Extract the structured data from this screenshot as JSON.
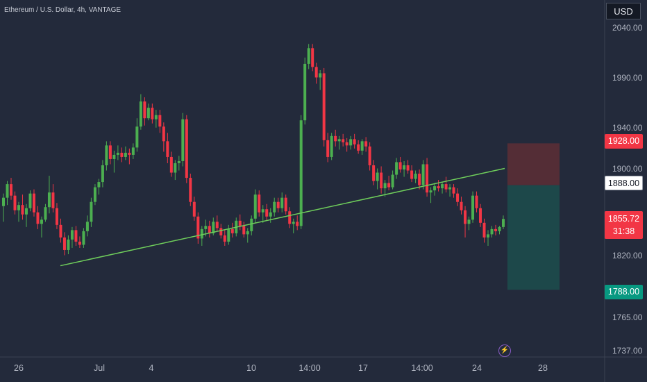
{
  "header": {
    "title": "Ethereum / U.S. Dollar, 4h, VANTAGE",
    "currency_button": "USD"
  },
  "colors": {
    "background": "#232a3b",
    "bullish": "#4caf50",
    "bearish": "#f23645",
    "trendline": "#6fce5b",
    "stop_zone": "#5a2d36",
    "target_zone": "#1d4b4c"
  },
  "chart_data": {
    "type": "candlestick",
    "y_ticks": [
      "2040.00",
      "1990.00",
      "1940.00",
      "1900.00",
      "1820.00",
      "1765.00",
      "1737.00"
    ],
    "x_ticks": [
      "26",
      "Jul",
      "4",
      "10",
      "14:00",
      "17",
      "14:00",
      "24",
      "28"
    ],
    "y_range": [
      1737,
      2040
    ],
    "price_labels": {
      "stop": "1928.00",
      "entry": "1888.00",
      "current": "1855.72",
      "countdown": "31:38",
      "target": "1788.00"
    },
    "position": {
      "stop": 1928.0,
      "entry": 1888.0,
      "target": 1788.0
    },
    "trendline": {
      "from": 1811,
      "to": 1904
    },
    "candles": [
      [
        1868,
        1880,
        1853,
        1876
      ],
      [
        1876,
        1892,
        1869,
        1889
      ],
      [
        1889,
        1895,
        1874,
        1878
      ],
      [
        1878,
        1882,
        1860,
        1864
      ],
      [
        1864,
        1872,
        1853,
        1869
      ],
      [
        1869,
        1879,
        1855,
        1860
      ],
      [
        1860,
        1870,
        1848,
        1866
      ],
      [
        1866,
        1883,
        1863,
        1880
      ],
      [
        1880,
        1884,
        1858,
        1862
      ],
      [
        1862,
        1868,
        1846,
        1851
      ],
      [
        1851,
        1858,
        1838,
        1855
      ],
      [
        1855,
        1870,
        1853,
        1867
      ],
      [
        1867,
        1897,
        1861,
        1881
      ],
      [
        1881,
        1889,
        1862,
        1866
      ],
      [
        1866,
        1871,
        1846,
        1850
      ],
      [
        1850,
        1856,
        1833,
        1838
      ],
      [
        1838,
        1843,
        1821,
        1826
      ],
      [
        1826,
        1840,
        1822,
        1836
      ],
      [
        1836,
        1848,
        1828,
        1845
      ],
      [
        1845,
        1849,
        1830,
        1834
      ],
      [
        1834,
        1839,
        1828,
        1831
      ],
      [
        1831,
        1847,
        1828,
        1844
      ],
      [
        1844,
        1859,
        1839,
        1853
      ],
      [
        1853,
        1876,
        1848,
        1872
      ],
      [
        1872,
        1889,
        1869,
        1886
      ],
      [
        1886,
        1894,
        1879,
        1891
      ],
      [
        1891,
        1912,
        1886,
        1907
      ],
      [
        1907,
        1930,
        1902,
        1926
      ],
      [
        1926,
        1930,
        1908,
        1913
      ],
      [
        1913,
        1921,
        1900,
        1917
      ],
      [
        1917,
        1926,
        1912,
        1919
      ],
      [
        1919,
        1924,
        1910,
        1915
      ],
      [
        1915,
        1925,
        1912,
        1919
      ],
      [
        1919,
        1923,
        1908,
        1917
      ],
      [
        1917,
        1928,
        1913,
        1924
      ],
      [
        1924,
        1952,
        1920,
        1944
      ],
      [
        1944,
        1975,
        1941,
        1968
      ],
      [
        1968,
        1972,
        1945,
        1952
      ],
      [
        1952,
        1966,
        1950,
        1962
      ],
      [
        1962,
        1966,
        1947,
        1951
      ],
      [
        1951,
        1960,
        1943,
        1955
      ],
      [
        1955,
        1960,
        1938,
        1944
      ],
      [
        1944,
        1948,
        1920,
        1930
      ],
      [
        1930,
        1938,
        1909,
        1915
      ],
      [
        1915,
        1920,
        1896,
        1900
      ],
      [
        1900,
        1912,
        1893,
        1909
      ],
      [
        1909,
        1916,
        1902,
        1911
      ],
      [
        1911,
        1957,
        1906,
        1951
      ],
      [
        1951,
        1955,
        1890,
        1895
      ],
      [
        1895,
        1899,
        1868,
        1872
      ],
      [
        1872,
        1877,
        1854,
        1858
      ],
      [
        1858,
        1862,
        1832,
        1837
      ],
      [
        1837,
        1849,
        1830,
        1846
      ],
      [
        1846,
        1855,
        1839,
        1849
      ],
      [
        1849,
        1854,
        1838,
        1842
      ],
      [
        1842,
        1857,
        1840,
        1853
      ],
      [
        1853,
        1859,
        1844,
        1847
      ],
      [
        1847,
        1851,
        1837,
        1840
      ],
      [
        1840,
        1845,
        1830,
        1834
      ],
      [
        1834,
        1850,
        1831,
        1846
      ],
      [
        1846,
        1852,
        1838,
        1842
      ],
      [
        1842,
        1857,
        1839,
        1854
      ],
      [
        1854,
        1860,
        1845,
        1849
      ],
      [
        1849,
        1853,
        1838,
        1841
      ],
      [
        1841,
        1847,
        1833,
        1844
      ],
      [
        1844,
        1859,
        1840,
        1856
      ],
      [
        1856,
        1884,
        1852,
        1879
      ],
      [
        1879,
        1883,
        1858,
        1862
      ],
      [
        1862,
        1869,
        1852,
        1865
      ],
      [
        1865,
        1870,
        1854,
        1858
      ],
      [
        1858,
        1866,
        1852,
        1862
      ],
      [
        1862,
        1876,
        1858,
        1872
      ],
      [
        1872,
        1876,
        1862,
        1866
      ],
      [
        1866,
        1881,
        1862,
        1876
      ],
      [
        1876,
        1879,
        1860,
        1863
      ],
      [
        1863,
        1867,
        1847,
        1851
      ],
      [
        1851,
        1856,
        1842,
        1853
      ],
      [
        1853,
        1859,
        1845,
        1849
      ],
      [
        1849,
        1955,
        1846,
        1950
      ],
      [
        1950,
        2010,
        1946,
        2004
      ],
      [
        2004,
        2023,
        1999,
        2019
      ],
      [
        2019,
        2023,
        1997,
        2001
      ],
      [
        2001,
        2005,
        1985,
        1991
      ],
      [
        1991,
        1998,
        1979,
        1995
      ],
      [
        1995,
        2000,
        1925,
        1931
      ],
      [
        1931,
        1938,
        1910,
        1915
      ],
      [
        1915,
        1938,
        1912,
        1935
      ],
      [
        1935,
        1941,
        1925,
        1930
      ],
      [
        1930,
        1935,
        1922,
        1932
      ],
      [
        1932,
        1937,
        1925,
        1929
      ],
      [
        1929,
        1933,
        1920,
        1926
      ],
      [
        1926,
        1935,
        1922,
        1932
      ],
      [
        1932,
        1937,
        1923,
        1927
      ],
      [
        1927,
        1931,
        1918,
        1921
      ],
      [
        1921,
        1932,
        1917,
        1930
      ],
      [
        1930,
        1934,
        1920,
        1925
      ],
      [
        1925,
        1929,
        1902,
        1907
      ],
      [
        1907,
        1912,
        1888,
        1892
      ],
      [
        1892,
        1904,
        1884,
        1900
      ],
      [
        1900,
        1906,
        1880,
        1885
      ],
      [
        1885,
        1893,
        1877,
        1890
      ],
      [
        1890,
        1897,
        1883,
        1886
      ],
      [
        1886,
        1902,
        1884,
        1898
      ],
      [
        1898,
        1914,
        1894,
        1910
      ],
      [
        1910,
        1915,
        1900,
        1903
      ],
      [
        1903,
        1911,
        1896,
        1907
      ],
      [
        1907,
        1912,
        1899,
        1902
      ],
      [
        1902,
        1907,
        1891,
        1894
      ],
      [
        1894,
        1902,
        1890,
        1899
      ],
      [
        1899,
        1903,
        1884,
        1888
      ],
      [
        1888,
        1912,
        1884,
        1908
      ],
      [
        1908,
        1914,
        1877,
        1881
      ],
      [
        1881,
        1886,
        1871,
        1883
      ],
      [
        1883,
        1890,
        1878,
        1887
      ],
      [
        1887,
        1893,
        1882,
        1885
      ],
      [
        1885,
        1891,
        1880,
        1889
      ],
      [
        1889,
        1896,
        1881,
        1884
      ],
      [
        1884,
        1889,
        1877,
        1886
      ],
      [
        1886,
        1889,
        1876,
        1880
      ],
      [
        1880,
        1885,
        1868,
        1872
      ],
      [
        1872,
        1877,
        1860,
        1864
      ],
      [
        1864,
        1868,
        1838,
        1851
      ],
      [
        1851,
        1858,
        1845,
        1855
      ],
      [
        1855,
        1882,
        1852,
        1878
      ],
      [
        1878,
        1882,
        1862,
        1866
      ],
      [
        1866,
        1870,
        1848,
        1852
      ],
      [
        1852,
        1856,
        1833,
        1838
      ],
      [
        1838,
        1845,
        1830,
        1841
      ],
      [
        1841,
        1849,
        1838,
        1846
      ],
      [
        1846,
        1850,
        1840,
        1844
      ],
      [
        1844,
        1849,
        1841,
        1848
      ],
      [
        1848,
        1859,
        1846,
        1855.72
      ]
    ]
  }
}
